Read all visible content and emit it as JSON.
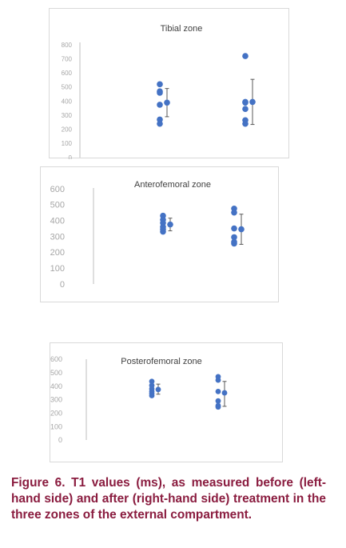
{
  "colors": {
    "marker": "#4472c4",
    "error_bar": "#595959",
    "axis": "#bfbfbf",
    "tick_label": "#a6a6a6",
    "title": "#404040",
    "caption": "#8a1c3f"
  },
  "chart_data": [
    {
      "type": "scatter",
      "title": "Tibial zone",
      "xlabel": "",
      "ylabel": "",
      "yticks": [
        "800",
        "700",
        "600",
        "500",
        "400",
        "300",
        "200",
        "100",
        "0"
      ],
      "ylim": [
        0,
        800
      ],
      "grid": false,
      "groups": [
        {
          "position": 1,
          "points": [
            520,
            470,
            460,
            375,
            270,
            240
          ],
          "mean": 390,
          "error": [
            290,
            490
          ]
        },
        {
          "position": 2,
          "points": [
            720,
            395,
            390,
            345,
            265,
            240
          ],
          "mean": 395,
          "error": [
            235,
            555
          ]
        }
      ]
    },
    {
      "type": "scatter",
      "title": "Anterofemoral zone",
      "xlabel": "",
      "ylabel": "",
      "yticks": [
        "600",
        "500",
        "400",
        "300",
        "200",
        "100",
        "0"
      ],
      "ylim": [
        0,
        600
      ],
      "grid": false,
      "groups": [
        {
          "position": 1,
          "points": [
            430,
            405,
            385,
            360,
            345,
            330
          ],
          "mean": 375,
          "error": [
            335,
            415
          ]
        },
        {
          "position": 2,
          "points": [
            475,
            450,
            350,
            295,
            265,
            255
          ],
          "mean": 345,
          "error": [
            250,
            440
          ]
        }
      ]
    },
    {
      "type": "scatter",
      "title": "Posterofemoral zone",
      "xlabel": "",
      "ylabel": "",
      "yticks": [
        "600",
        "500",
        "400",
        "300",
        "200",
        "100",
        "0"
      ],
      "ylim": [
        0,
        600
      ],
      "grid": false,
      "groups": [
        {
          "position": 1,
          "points": [
            435,
            405,
            380,
            360,
            345,
            330
          ],
          "mean": 375,
          "error": [
            340,
            415
          ]
        },
        {
          "position": 2,
          "points": [
            470,
            445,
            360,
            290,
            255,
            245
          ],
          "mean": 350,
          "error": [
            250,
            435
          ]
        }
      ]
    }
  ],
  "caption": "Figure 6. T1 values (ms), as measured before (left-hand side) and after (right-hand side) treatment in the three zones of the external compartment."
}
